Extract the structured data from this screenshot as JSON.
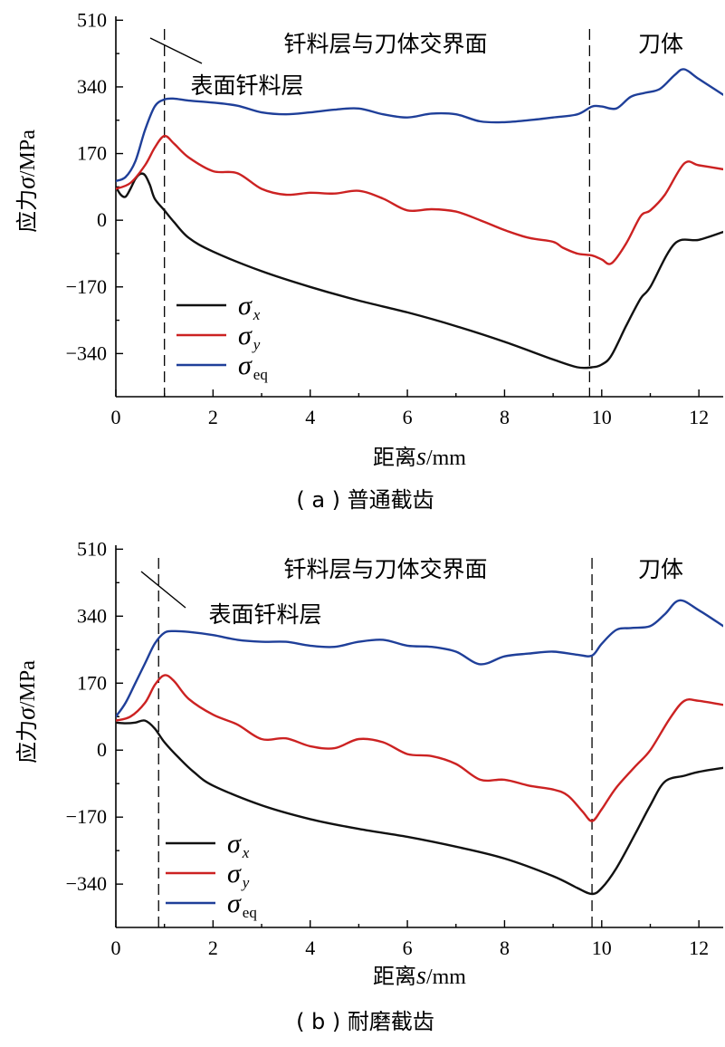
{
  "chart_data": [
    {
      "type": "line",
      "caption": "( a ) 普通截齿",
      "ylabel_prefix": "应力",
      "ylabel_symbol": "σ",
      "ylabel_unit": "/MPa",
      "xlabel_prefix": "距离",
      "xlabel_symbol": "s",
      "xlabel_unit": "/mm",
      "xlim": [
        0,
        12.5
      ],
      "ylim": [
        -450,
        520
      ],
      "xticks": [
        0,
        2,
        4,
        6,
        8,
        10,
        12
      ],
      "yticks": [
        510,
        340,
        170,
        0,
        -170,
        -340
      ],
      "ytick_labels": [
        "510",
        "340",
        "170",
        "0",
        "−170",
        "−340"
      ],
      "annotations": {
        "interface": "钎料层与刀体交界面",
        "surface_layer": "表面钎料层",
        "body": "刀体"
      },
      "vlines": [
        1.0,
        9.75
      ],
      "legend_placement": "lower-left",
      "series": [
        {
          "name": "σx",
          "symbol": "σ",
          "subscript": "x",
          "color": "#111111",
          "x": [
            0,
            0.1,
            0.2,
            0.3,
            0.4,
            0.5,
            0.6,
            0.7,
            0.8,
            1.0,
            1.2,
            1.5,
            2,
            3,
            4,
            5,
            6,
            7,
            8,
            9,
            9.5,
            9.8,
            10.0,
            10.2,
            10.5,
            10.8,
            11.0,
            11.5,
            12,
            12.5
          ],
          "values": [
            85,
            65,
            60,
            80,
            105,
            118,
            115,
            90,
            55,
            25,
            -5,
            -45,
            -80,
            -130,
            -170,
            -205,
            -235,
            -270,
            -310,
            -355,
            -375,
            -375,
            -368,
            -345,
            -270,
            -200,
            -170,
            -60,
            -50,
            -30
          ]
        },
        {
          "name": "σy",
          "symbol": "σ",
          "subscript": "y",
          "color": "#cc2222",
          "x": [
            0,
            0.3,
            0.6,
            0.8,
            1.0,
            1.2,
            1.5,
            2,
            2.5,
            3,
            3.5,
            4,
            4.5,
            5,
            5.5,
            6,
            6.5,
            7,
            7.5,
            8,
            8.5,
            9,
            9.2,
            9.5,
            9.8,
            10.0,
            10.2,
            10.5,
            10.8,
            11.0,
            11.3,
            11.7,
            12,
            12.5
          ],
          "values": [
            80,
            95,
            140,
            185,
            215,
            195,
            160,
            125,
            120,
            80,
            65,
            70,
            68,
            75,
            55,
            25,
            28,
            22,
            0,
            -25,
            -45,
            -55,
            -70,
            -85,
            -90,
            -100,
            -110,
            -60,
            10,
            25,
            65,
            145,
            140,
            130
          ]
        },
        {
          "name": "σeq",
          "symbol": "σ",
          "subscript": "eq",
          "color": "#1f3f99",
          "x": [
            0,
            0.2,
            0.4,
            0.6,
            0.8,
            1.0,
            1.2,
            1.5,
            2,
            2.5,
            3,
            3.5,
            4,
            4.5,
            5,
            5.5,
            6,
            6.5,
            7,
            7.5,
            8,
            8.5,
            9,
            9.5,
            9.8,
            10.0,
            10.3,
            10.6,
            10.9,
            11.2,
            11.5,
            11.7,
            12,
            12.5
          ],
          "values": [
            100,
            110,
            150,
            230,
            290,
            308,
            310,
            305,
            300,
            292,
            275,
            270,
            275,
            282,
            285,
            270,
            262,
            272,
            270,
            252,
            250,
            255,
            262,
            270,
            290,
            290,
            285,
            315,
            325,
            335,
            370,
            385,
            360,
            320
          ]
        }
      ]
    },
    {
      "type": "line",
      "caption": "( b ) 耐磨截齿",
      "ylabel_prefix": "应力",
      "ylabel_symbol": "σ",
      "ylabel_unit": "/MPa",
      "xlabel_prefix": "距离",
      "xlabel_symbol": "s",
      "xlabel_unit": "/mm",
      "xlim": [
        0,
        12.5
      ],
      "ylim": [
        -450,
        520
      ],
      "xticks": [
        0,
        2,
        4,
        6,
        8,
        10,
        12
      ],
      "yticks": [
        510,
        340,
        170,
        0,
        -170,
        -340
      ],
      "ytick_labels": [
        "510",
        "340",
        "170",
        "0",
        "−170",
        "−340"
      ],
      "annotations": {
        "interface": "钎料层与刀体交界面",
        "surface_layer": "表面钎料层",
        "body": "刀体"
      },
      "vlines": [
        0.88,
        9.8
      ],
      "legend_placement": "lower-left",
      "series": [
        {
          "name": "σx",
          "symbol": "σ",
          "subscript": "x",
          "color": "#111111",
          "x": [
            0,
            0.2,
            0.4,
            0.6,
            0.8,
            1.0,
            1.3,
            1.6,
            2,
            3,
            4,
            5,
            6,
            7,
            8,
            9,
            9.5,
            9.8,
            10.0,
            10.3,
            10.7,
            11.0,
            11.3,
            11.7,
            12,
            12.5
          ],
          "values": [
            70,
            68,
            70,
            75,
            55,
            20,
            -20,
            -55,
            -90,
            -140,
            -175,
            -200,
            -220,
            -245,
            -275,
            -320,
            -350,
            -365,
            -350,
            -300,
            -210,
            -140,
            -80,
            -65,
            -55,
            -45
          ]
        },
        {
          "name": "σy",
          "symbol": "σ",
          "subscript": "y",
          "color": "#cc2222",
          "x": [
            0,
            0.3,
            0.6,
            0.8,
            1.0,
            1.2,
            1.5,
            2,
            2.5,
            3,
            3.5,
            4,
            4.5,
            5,
            5.5,
            6,
            6.5,
            7,
            7.5,
            8,
            8.5,
            9,
            9.3,
            9.6,
            9.8,
            10.0,
            10.3,
            10.7,
            11.0,
            11.4,
            11.7,
            12,
            12.5
          ],
          "values": [
            75,
            85,
            120,
            165,
            190,
            175,
            130,
            90,
            65,
            28,
            30,
            10,
            5,
            28,
            20,
            -10,
            -15,
            -35,
            -75,
            -75,
            -90,
            -100,
            -115,
            -155,
            -180,
            -150,
            -95,
            -40,
            0,
            80,
            125,
            125,
            115
          ]
        },
        {
          "name": "σeq",
          "symbol": "σ",
          "subscript": "eq",
          "color": "#1f3f99",
          "x": [
            0,
            0.2,
            0.4,
            0.6,
            0.8,
            1.0,
            1.2,
            1.5,
            2,
            2.5,
            3,
            3.5,
            4,
            4.5,
            5,
            5.5,
            6,
            6.5,
            7,
            7.5,
            8,
            8.5,
            9,
            9.5,
            9.8,
            10.0,
            10.3,
            10.6,
            11.0,
            11.3,
            11.6,
            12,
            12.5
          ],
          "values": [
            85,
            120,
            170,
            220,
            270,
            298,
            302,
            300,
            292,
            280,
            275,
            275,
            265,
            262,
            275,
            280,
            265,
            262,
            250,
            218,
            238,
            245,
            250,
            242,
            240,
            270,
            305,
            310,
            315,
            345,
            380,
            355,
            315
          ]
        }
      ]
    }
  ]
}
